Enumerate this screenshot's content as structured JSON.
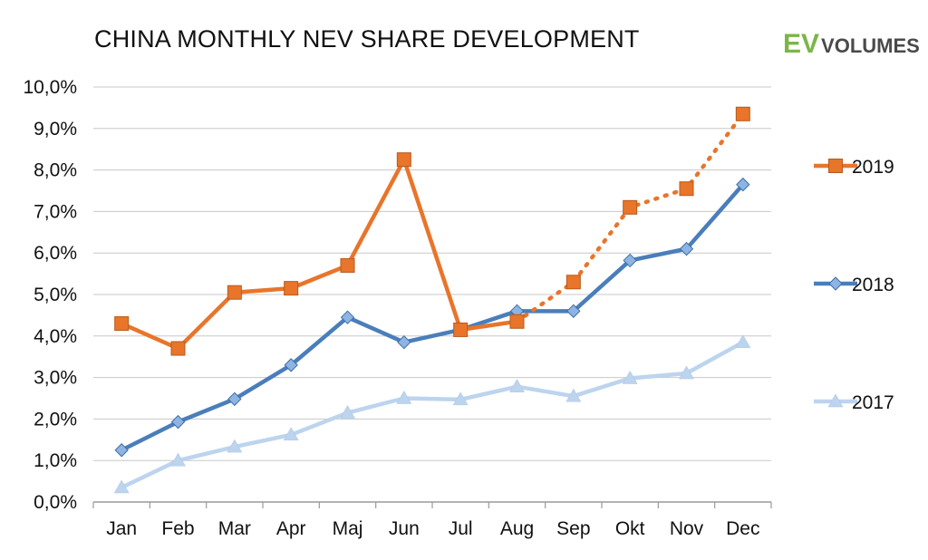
{
  "header": {
    "title": "CHINA MONTHLY NEV SHARE DEVELOPMENT",
    "logo_ev": "EV",
    "logo_volumes": "VOLUMES"
  },
  "chart_data": {
    "type": "line",
    "title": "CHINA MONTHLY NEV SHARE DEVELOPMENT",
    "xlabel": "",
    "ylabel": "",
    "categories": [
      "Jan",
      "Feb",
      "Mar",
      "Apr",
      "Maj",
      "Jun",
      "Jul",
      "Aug",
      "Sep",
      "Okt",
      "Nov",
      "Dec"
    ],
    "yticks": [
      "0,0%",
      "1,0%",
      "2,0%",
      "3,0%",
      "4,0%",
      "5,0%",
      "6,0%",
      "7,0%",
      "8,0%",
      "9,0%",
      "10,0%"
    ],
    "ylim": [
      0,
      10
    ],
    "grid": true,
    "legend_position": "right",
    "series": [
      {
        "name": "2019",
        "color": "#e8752a",
        "marker": "square",
        "values": [
          4.3,
          3.7,
          5.05,
          5.15,
          5.7,
          8.25,
          4.15,
          4.35,
          null,
          null,
          null,
          null
        ],
        "projection": [
          null,
          null,
          null,
          null,
          null,
          null,
          null,
          4.35,
          5.3,
          7.1,
          7.55,
          9.35
        ]
      },
      {
        "name": "2018",
        "color": "#4a7ebb",
        "marker": "diamond",
        "values": [
          1.25,
          1.93,
          2.48,
          3.3,
          4.45,
          3.85,
          4.15,
          4.6,
          4.6,
          5.82,
          6.1,
          7.65
        ]
      },
      {
        "name": "2017",
        "color": "#bdd4ee",
        "marker": "triangle",
        "values": [
          0.35,
          1.0,
          1.33,
          1.62,
          2.15,
          2.5,
          2.47,
          2.78,
          2.55,
          2.98,
          3.1,
          3.85
        ]
      }
    ]
  }
}
